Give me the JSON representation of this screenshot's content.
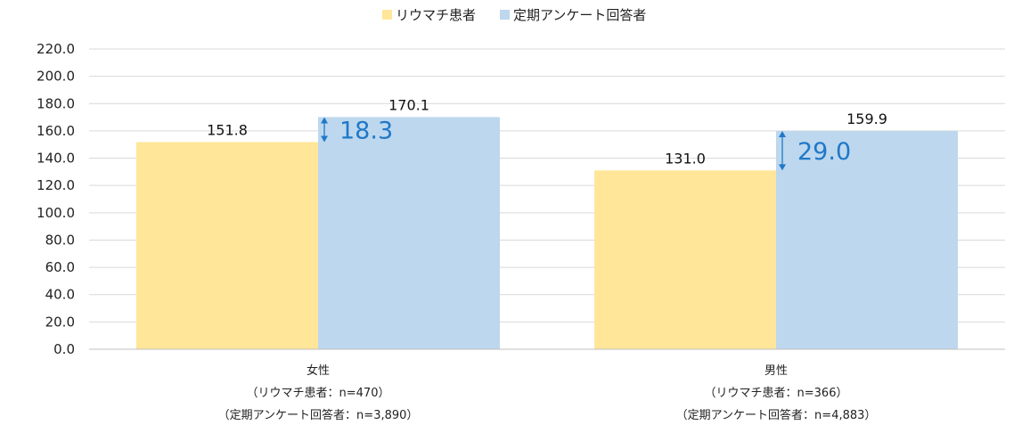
{
  "chart_data": {
    "type": "bar",
    "title": "",
    "xlabel": "",
    "ylabel": "",
    "ylim": [
      0,
      220
    ],
    "yticks": [
      0,
      20,
      40,
      60,
      80,
      100,
      120,
      140,
      160,
      180,
      200,
      220
    ],
    "ytick_labels": [
      "0.0",
      "20.0",
      "40.0",
      "60.0",
      "80.0",
      "100.0",
      "120.0",
      "140.0",
      "160.0",
      "180.0",
      "200.0",
      "220.0"
    ],
    "grid": true,
    "legend_position": "top",
    "categories": [
      {
        "label": "女性",
        "sub1": "（リウマチ患者：n=470）",
        "sub2": "（定期アンケート回答者：n=3,890）"
      },
      {
        "label": "男性",
        "sub1": "（リウマチ患者：n=366）",
        "sub2": "（定期アンケート回答者：n=4,883）"
      }
    ],
    "series": [
      {
        "name": "リウマチ患者",
        "color": "#ffe699",
        "values": [
          151.8,
          131.0
        ],
        "labels": [
          "151.8",
          "131.0"
        ]
      },
      {
        "name": "定期アンケート回答者",
        "color": "#bdd7ee",
        "values": [
          170.1,
          159.9
        ],
        "labels": [
          "170.1",
          "159.9"
        ]
      }
    ],
    "differences": [
      {
        "value": 18.3,
        "label": "18.3"
      },
      {
        "value": 29.0,
        "label": "29.0"
      }
    ],
    "annotation_color": "#1f78c8"
  }
}
